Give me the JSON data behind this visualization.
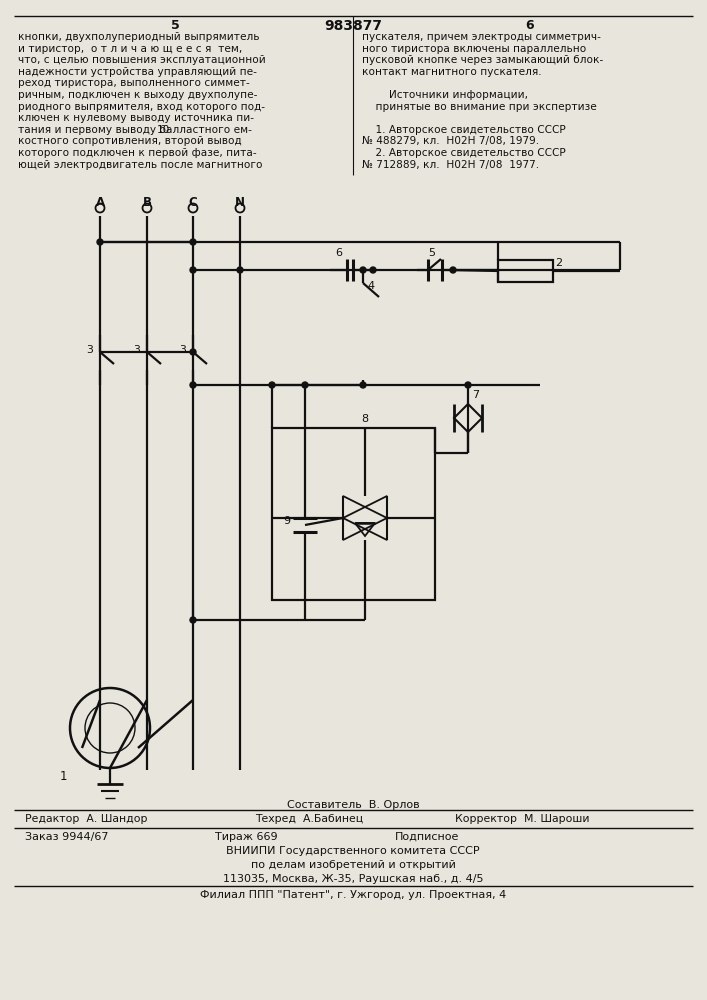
{
  "bg_color": "#e8e6dc",
  "lc": "#111111",
  "tc": "#111111",
  "page_num_left": "5",
  "patent_num": "983877",
  "page_num_right": "6",
  "col_left": [
    "кнопки, двухполупериодный выпрямитель",
    "и тиристор,  о т л и ч а ю щ е е с я  тем,",
    "что, с целью повышения эксплуатационной",
    "надежности устройства управляющий пе-",
    "реход тиристора, выполненного симмет-",
    "ричным, подключен к выходу двухполупе-",
    "риодного выпрямителя, вход которого под-",
    "ключен к нулевому выводу источника пи-",
    "тания и первому выводу балластного ем-",
    "костного сопротивления, второй вывод",
    "которого подключен к первой фазе, пита-",
    "ющей электродвигатель после магнитного"
  ],
  "col_right": [
    "пускателя, причем электроды симметрич-",
    "ного тиристора включены параллельно",
    "пусковой кнопке через замыкающий блок-",
    "контакт магнитного пускателя.",
    "",
    "        Источники информации,",
    "    принятые во внимание при экспертизе",
    "",
    "    1. Авторское свидетельство СССР",
    "№ 488279, кл.  Н02Н 7/08, 1979.",
    "    2. Авторское свидетельство СССР",
    "№ 712889, кл.  Н02Н 7/08  1977."
  ],
  "line_num": "10",
  "footer_composer": "Составитель  В. Орлов",
  "footer_editor": "Редактор  А. Шандор",
  "footer_tech": "Техред  А.Бабинец",
  "footer_corrector": "Корректор  М. Шароши",
  "footer_order": "Заказ 9944/67",
  "footer_print": "Тираж 669",
  "footer_sign": "Подписное",
  "footer_org1": "ВНИИПИ Государственного комитета СССР",
  "footer_org2": "по делам изобретений и открытий",
  "footer_addr": "113035, Москва, Ж-35, Раушская наб., д. 4/5",
  "footer_branch": "Филиал ППП \"Патент\", г. Ужгород, ул. Проектная, 4"
}
